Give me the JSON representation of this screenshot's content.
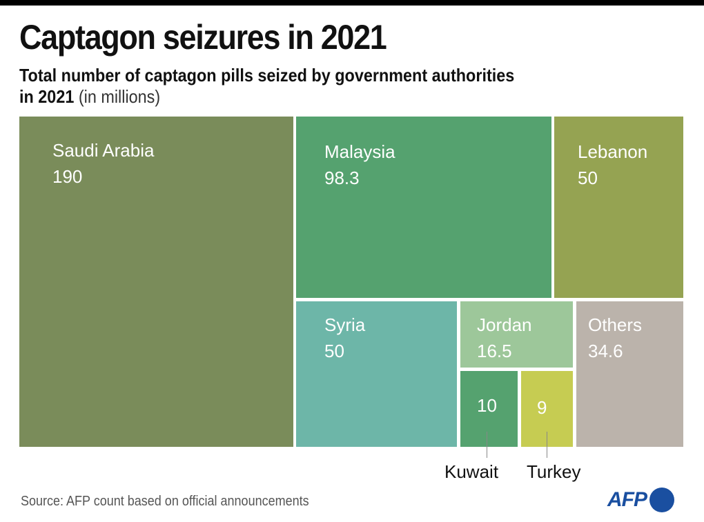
{
  "header": {
    "title": "Captagon seizures in 2021",
    "subtitle_bold_1": "Total number of captagon pills seized by government authorities",
    "subtitle_bold_2": "in 2021",
    "subtitle_light": " (in millions)"
  },
  "chart_data": {
    "type": "treemap",
    "title": "Captagon seizures in 2021",
    "subtitle": "Total number of captagon pills seized by government authorities in 2021 (in millions)",
    "unit": "millions of pills",
    "items": [
      {
        "name": "Saudi Arabia",
        "value": 190,
        "value_label": "190",
        "color": "#7a8c5a",
        "label_inside": true
      },
      {
        "name": "Malaysia",
        "value": 98.3,
        "value_label": "98.3",
        "color": "#55a26f",
        "label_inside": true
      },
      {
        "name": "Lebanon",
        "value": 50,
        "value_label": "50",
        "color": "#95a352",
        "label_inside": true
      },
      {
        "name": "Syria",
        "value": 50,
        "value_label": "50",
        "color": "#6db6a8",
        "label_inside": true
      },
      {
        "name": "Jordan",
        "value": 16.5,
        "value_label": "16.5",
        "color": "#9dc79a",
        "label_inside": true
      },
      {
        "name": "Kuwait",
        "value": 10,
        "value_label": "10",
        "color": "#55a26f",
        "label_inside": false
      },
      {
        "name": "Turkey",
        "value": 9,
        "value_label": "9",
        "color": "#c6cc52",
        "label_inside": false
      },
      {
        "name": "Others",
        "value": 34.6,
        "value_label": "34.6",
        "color": "#bbb3ab",
        "label_inside": true
      }
    ]
  },
  "footer": {
    "source": "Source: AFP count based on official announcements",
    "logo_text": "AFP",
    "logo_color": "#1a4fa0"
  }
}
